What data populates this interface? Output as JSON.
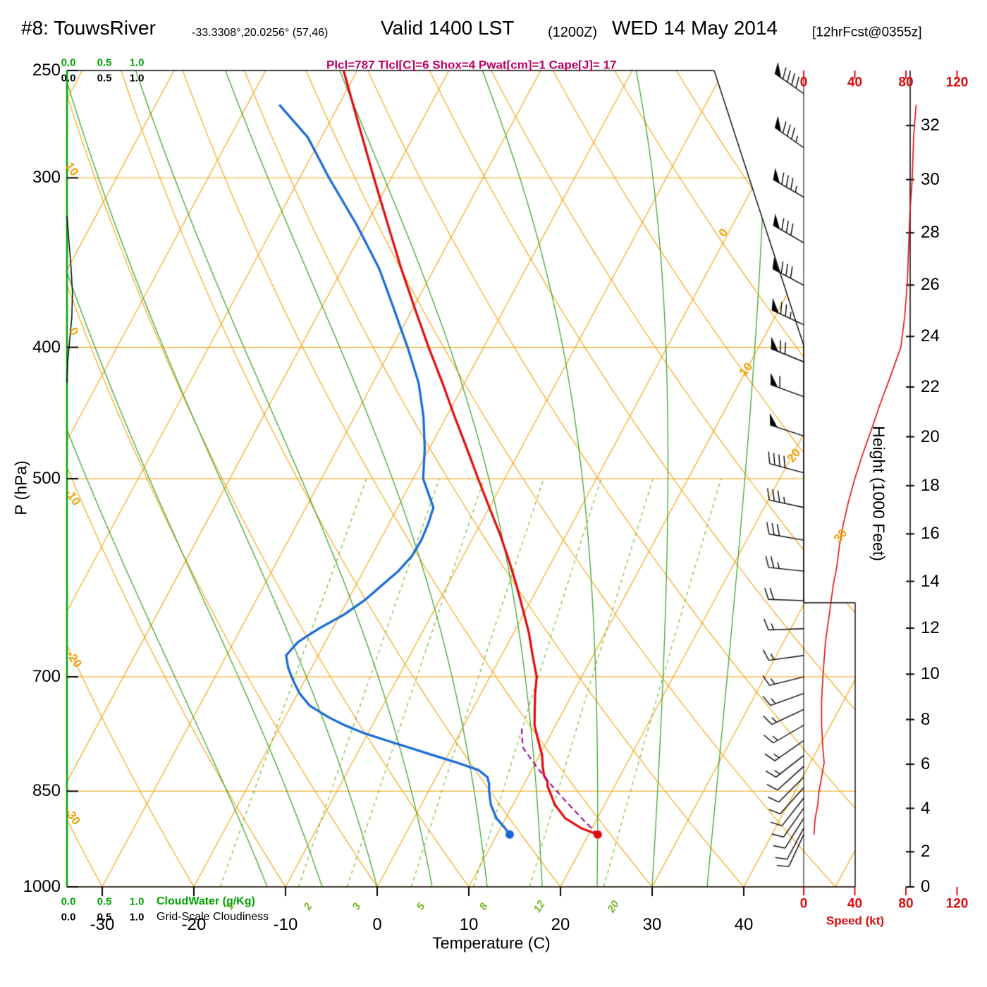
{
  "header": {
    "station": "#8: TouwsRiver",
    "coords": "-33.3308°,20.0256° (57,46)",
    "valid": "Valid 1400 LST",
    "valid_z": "(1200Z)",
    "valid_date": "WED 14 May 2014",
    "fcst": "[12hrFcst@0355z]",
    "params": "Plcl=787 Tlcl[C]=6 Shox=4 Pwat[cm]=1 Cape[J]= 17"
  },
  "axes": {
    "pressure": {
      "label": "P (hPa)",
      "ticks": [
        "250",
        "300",
        "400",
        "500",
        "700",
        "850",
        "1000"
      ]
    },
    "temperature": {
      "label": "Temperature (C)",
      "ticks": [
        "-30",
        "-20",
        "-10",
        "0",
        "10",
        "20",
        "30",
        "40"
      ]
    },
    "height": {
      "label": "Height (1000 Feet)",
      "ticks": [
        "0",
        "2",
        "4",
        "6",
        "8",
        "10",
        "12",
        "14",
        "16",
        "18",
        "20",
        "22",
        "24",
        "26",
        "28",
        "30",
        "32"
      ]
    },
    "speed": {
      "label": "Speed (kt)",
      "ticks": [
        "0",
        "40",
        "80",
        "120"
      ]
    },
    "cloudwater": {
      "label": "CloudWater (g/Kg)",
      "ticks": [
        "0.0",
        "0.5",
        "1.0"
      ]
    },
    "cloudiness": {
      "label": "Grid-Scale Cloudiness",
      "ticks": [
        "0.0",
        "0.5",
        "1.0"
      ]
    }
  },
  "plot_labels": {
    "isotherm_right": [
      "0",
      "10",
      "20",
      "30"
    ],
    "adiabat_left": [
      "10",
      "0",
      "-10",
      "-20",
      "-30"
    ],
    "mixing_ratio": [
      "1",
      "2",
      "3",
      "5",
      "8",
      "12",
      "20"
    ]
  },
  "colors": {
    "orange": "#F2A007",
    "moist_green": "#3FA32F",
    "mixing_green": "#76B82A",
    "axis_green": "#00A400",
    "temp_red": "#DE0B0B",
    "dewpoint_blue": "#1569D6",
    "parcel_purple": "#8B008B",
    "barb_black": "#000000",
    "param_magenta": "#BE0064"
  },
  "chart_data": {
    "type": "skewt_log_p",
    "pressure_range_hpa": [
      250,
      1000
    ],
    "temp_axis_range_c": [
      -30,
      40
    ],
    "isobar_lines": [
      300,
      400,
      500,
      700,
      850,
      1000
    ],
    "isotherms_c": [
      -110,
      -100,
      -90,
      -80,
      -70,
      -60,
      -50,
      -40,
      -30,
      -20,
      -10,
      0,
      10,
      20,
      30,
      40,
      50
    ],
    "dry_adiabats_c": [
      -40,
      -30,
      -20,
      -10,
      0,
      10,
      20,
      30,
      40,
      50,
      60,
      70,
      80,
      90,
      100,
      110,
      120
    ],
    "moist_adiabats_c": [
      -12,
      -6,
      0,
      6,
      12,
      18,
      24,
      30,
      36
    ],
    "mixing_ratio_lines": [
      1,
      2,
      3,
      5,
      8,
      12,
      20
    ],
    "surface": {
      "pressure": 915,
      "temp_c": 21.0,
      "dewpoint_c": 11.4
    },
    "indices": {
      "Plcl": 787,
      "Tlcl_C": 6,
      "Shox": 4,
      "Pwat_cm": 1,
      "Cape_J": 17
    },
    "temperature_profile": {
      "pressure": [
        915,
        905,
        890,
        870,
        850,
        843,
        836,
        828,
        815,
        800,
        780,
        760,
        740,
        720,
        700,
        675,
        650,
        625,
        600,
        575,
        550,
        525,
        500,
        475,
        450,
        425,
        400,
        375,
        350,
        325,
        300,
        275,
        250
      ],
      "temp_c": [
        21.0,
        18.8,
        16.5,
        14.6,
        13.2,
        12.7,
        12.4,
        11.7,
        11.0,
        10.3,
        9.0,
        7.7,
        6.8,
        5.9,
        5.1,
        3.4,
        1.7,
        -0.3,
        -2.4,
        -4.7,
        -7.2,
        -10.0,
        -12.9,
        -15.9,
        -19.1,
        -22.4,
        -26.0,
        -29.7,
        -33.6,
        -37.6,
        -41.9,
        -46.5,
        -51.5
      ]
    },
    "dewpoint_profile": {
      "pressure": [
        915,
        905,
        890,
        870,
        850,
        840,
        830,
        820,
        810,
        800,
        790,
        780,
        770,
        760,
        750,
        735,
        720,
        705,
        690,
        675,
        660,
        645,
        630,
        615,
        600,
        585,
        570,
        555,
        540,
        525,
        500,
        475,
        450,
        425,
        400,
        375,
        350,
        325,
        300,
        280,
        265
      ],
      "dewpoint_c": [
        11.4,
        10.5,
        9.0,
        7.6,
        6.6,
        6.2,
        5.6,
        4.2,
        1.5,
        -1.5,
        -4.5,
        -7.5,
        -10.5,
        -13.0,
        -15.2,
        -18.0,
        -19.8,
        -21.2,
        -22.5,
        -23.5,
        -23.0,
        -21.5,
        -19.6,
        -18.2,
        -17.2,
        -16.2,
        -15.6,
        -15.5,
        -15.7,
        -16.1,
        -18.9,
        -20.5,
        -22.5,
        -25.0,
        -28.3,
        -32.0,
        -36.0,
        -41.0,
        -46.8,
        -51.5,
        -56.5
      ]
    },
    "parcel_profile": {
      "pressure": [
        915,
        890,
        865,
        840,
        815,
        790,
        775,
        760
      ],
      "temp_c": [
        21.0,
        18.3,
        15.6,
        12.9,
        10.3,
        7.8,
        7.0,
        6.3
      ]
    },
    "wind_profile": {
      "pressure": [
        260,
        285,
        310,
        335,
        360,
        385,
        410,
        435,
        465,
        495,
        525,
        555,
        585,
        615,
        645,
        675,
        700,
        720,
        740,
        760,
        780,
        800,
        815,
        830,
        845,
        860,
        875,
        890,
        905,
        915
      ],
      "speed_kt": [
        90,
        85,
        85,
        80,
        80,
        75,
        70,
        60,
        50,
        40,
        33,
        28,
        24,
        20,
        17,
        15,
        15,
        14,
        14,
        13,
        13,
        13,
        12,
        12,
        11,
        10,
        10,
        9,
        8,
        8
      ],
      "direction_deg": [
        305,
        305,
        300,
        300,
        298,
        295,
        292,
        290,
        288,
        285,
        282,
        280,
        276,
        272,
        268,
        262,
        256,
        250,
        245,
        240,
        235,
        232,
        228,
        225,
        222,
        218,
        215,
        212,
        208,
        205
      ]
    },
    "speed_curve": {
      "pressure": [
        265,
        280,
        300,
        320,
        340,
        360,
        380,
        400,
        420,
        440,
        460,
        480,
        500,
        520,
        540,
        560,
        580,
        600,
        620,
        640,
        660,
        680,
        700,
        730,
        760,
        790,
        810,
        830,
        850,
        870,
        890,
        915
      ],
      "speed_kt": [
        88,
        86,
        85,
        83,
        82,
        81,
        79,
        76,
        68,
        60,
        53,
        46,
        40,
        35,
        31,
        28,
        26,
        23,
        21,
        19,
        17,
        16,
        15,
        14,
        14,
        15,
        16,
        14,
        12,
        11,
        9,
        8
      ]
    },
    "cloudiness_profile": {
      "pressure": [
        320,
        335,
        350,
        365,
        380,
        395,
        410,
        425
      ],
      "fraction": [
        0,
        0.03,
        0.06,
        0.08,
        0.07,
        0.04,
        0.01,
        0
      ]
    }
  }
}
